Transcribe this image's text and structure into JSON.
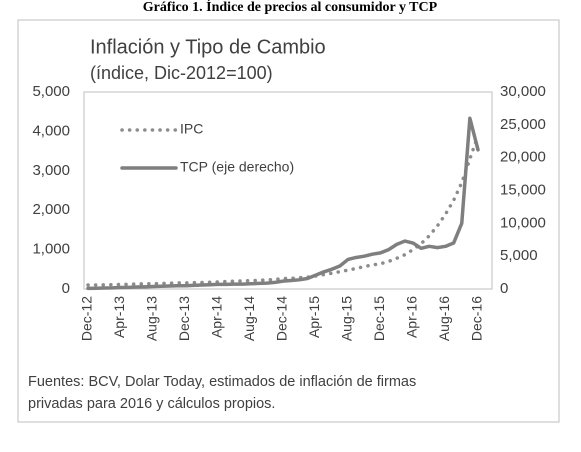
{
  "chart_data": {
    "type": "line",
    "header": "Gráfico 1. Índice de precios al consumidor y TCP",
    "title": "Inflación y Tipo de Cambio",
    "subtitle": "(índice, Dic-2012=100)",
    "footnote": [
      "Fuentes: BCV, Dolar Today, estimados de inflación de firmas",
      "privadas para 2016 y cálculos propios."
    ],
    "categories": [
      "Dec-12",
      null,
      null,
      null,
      "Apr-13",
      null,
      null,
      null,
      "Aug-13",
      null,
      null,
      null,
      "Dec-13",
      null,
      null,
      null,
      "Apr-14",
      null,
      null,
      null,
      "Aug-14",
      null,
      null,
      null,
      "Dec-14",
      null,
      null,
      null,
      "Apr-15",
      null,
      null,
      null,
      "Aug-15",
      null,
      null,
      null,
      "Dec-15",
      null,
      null,
      null,
      "Apr-16",
      null,
      null,
      null,
      "Aug-16",
      null,
      null,
      null,
      "Dec-16"
    ],
    "series": [
      {
        "name": "IPC",
        "color": "#8c8c8c",
        "dash": "dotted",
        "axis": "y",
        "values": [
          100,
          103,
          106,
          109,
          114,
          121,
          127,
          131,
          135,
          141,
          147,
          154,
          156,
          161,
          165,
          171,
          180,
          190,
          198,
          205,
          212,
          221,
          231,
          241,
          264,
          270,
          285,
          300,
          330,
          365,
          400,
          440,
          480,
          520,
          570,
          610,
          640,
          700,
          780,
          870,
          1000,
          1150,
          1350,
          1600,
          1900,
          2250,
          2700,
          3300,
          3900
        ]
      },
      {
        "name": "TCP (eje derecho)",
        "color": "#7f7f7f",
        "dash": "solid",
        "axis": "y2",
        "values": [
          100,
          120,
          150,
          170,
          220,
          250,
          300,
          330,
          380,
          420,
          450,
          500,
          500,
          550,
          600,
          650,
          700,
          700,
          750,
          750,
          800,
          850,
          900,
          1000,
          1200,
          1300,
          1400,
          1600,
          2100,
          2600,
          3000,
          3500,
          4500,
          4800,
          5000,
          5300,
          5500,
          6000,
          6800,
          7300,
          7000,
          6200,
          6500,
          6300,
          6500,
          7000,
          10000,
          26000,
          21200
        ]
      }
    ],
    "ylim": [
      0,
      5000
    ],
    "yticks": [
      0,
      {
        "value": 1000,
        "label": "1,000"
      },
      {
        "value": 2000,
        "label": "2,000"
      },
      {
        "value": 3000,
        "label": "3,000"
      },
      {
        "value": 4000,
        "label": "4,000"
      },
      {
        "value": 5000,
        "label": "5,000"
      }
    ],
    "y2lim": [
      0,
      30000
    ],
    "y2ticks": [
      0,
      {
        "value": 5000,
        "label": "5,000"
      },
      {
        "value": 10000,
        "label": "10,000"
      },
      {
        "value": 15000,
        "label": "15,000"
      },
      {
        "value": 20000,
        "label": "20,000"
      },
      {
        "value": 25000,
        "label": "25,000"
      },
      {
        "value": 30000,
        "label": "30,000"
      }
    ],
    "grid": false,
    "legend": "upper-left"
  }
}
